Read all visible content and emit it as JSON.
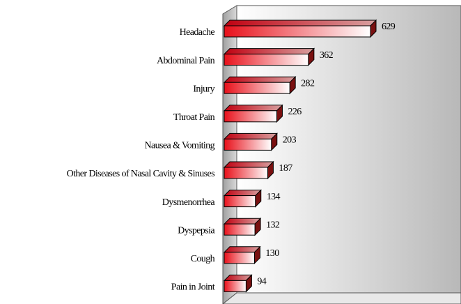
{
  "chart_data": {
    "type": "bar3d_horizontal",
    "categories": [
      "Headache",
      "Abdominal Pain",
      "Injury",
      "Throat Pain",
      "Nausea & Vomiting",
      "Other Diseases of Nasal Cavity & Sinuses",
      "Dysmenorrhea",
      "Dyspepsia",
      "Cough",
      "Pain in Joint"
    ],
    "values": [
      629,
      362,
      282,
      226,
      203,
      187,
      134,
      132,
      130,
      94
    ],
    "color": "#e8101a"
  }
}
